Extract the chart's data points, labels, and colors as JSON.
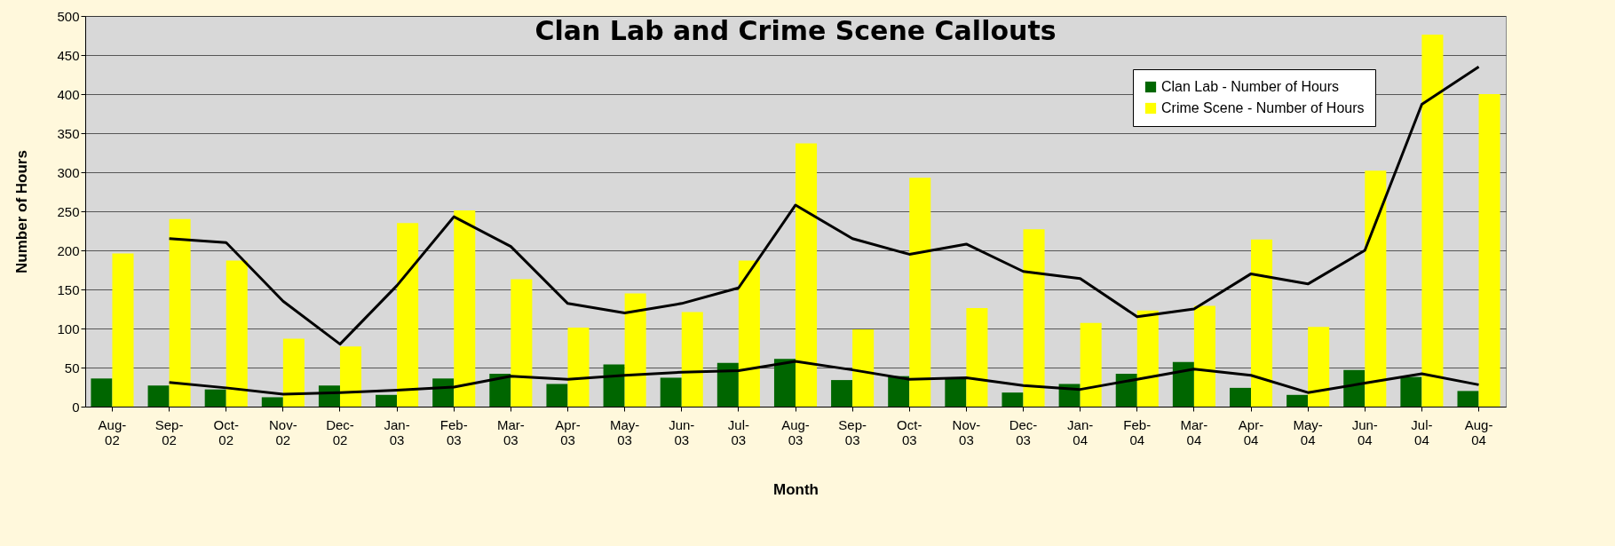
{
  "chart_data": {
    "type": "bar",
    "title": "Clan Lab and Crime Scene Callouts",
    "xlabel": "Month",
    "ylabel": "Number of Hours",
    "categories": [
      "Aug-02",
      "Sep-02",
      "Oct-02",
      "Nov-02",
      "Dec-02",
      "Jan-03",
      "Feb-03",
      "Mar-03",
      "Apr-03",
      "May-03",
      "Jun-03",
      "Jul-03",
      "Aug-03",
      "Sep-03",
      "Oct-03",
      "Nov-03",
      "Dec-03",
      "Jan-04",
      "Feb-04",
      "Mar-04",
      "Apr-04",
      "May-04",
      "Jun-04",
      "Jul-04",
      "Aug-04"
    ],
    "series": [
      {
        "name": "Clan Lab - Number of Hours",
        "color": "#006600",
        "values": [
          36,
          27,
          22,
          12,
          27,
          15,
          36,
          42,
          29,
          54,
          37,
          56,
          61,
          34,
          39,
          37,
          18,
          29,
          42,
          57,
          24,
          15,
          47,
          38,
          20
        ]
      },
      {
        "name": "Crime Scene - Number of Hours",
        "color": "#ffff00",
        "values": [
          196,
          240,
          187,
          87,
          77,
          235,
          251,
          163,
          101,
          145,
          121,
          187,
          337,
          99,
          293,
          126,
          227,
          107,
          123,
          129,
          214,
          102,
          302,
          476,
          400
        ]
      },
      {
        "type": "line",
        "color": "#000000",
        "values": [
          null,
          31,
          24,
          16,
          18,
          21,
          25,
          39,
          35,
          40,
          44,
          46,
          58,
          47,
          35,
          37,
          27,
          22,
          35,
          48,
          40,
          18,
          30,
          42,
          28
        ]
      },
      {
        "type": "line",
        "color": "#000000",
        "values": [
          null,
          215,
          210,
          135,
          80,
          155,
          243,
          205,
          132,
          120,
          132,
          152,
          258,
          215,
          195,
          208,
          173,
          164,
          115,
          125,
          170,
          157,
          200,
          387,
          435
        ]
      }
    ],
    "ylim": [
      0,
      500
    ],
    "yticks": [
      0,
      50,
      100,
      150,
      200,
      250,
      300,
      350,
      400,
      450,
      500
    ],
    "grid": "y",
    "legend": "top right"
  }
}
